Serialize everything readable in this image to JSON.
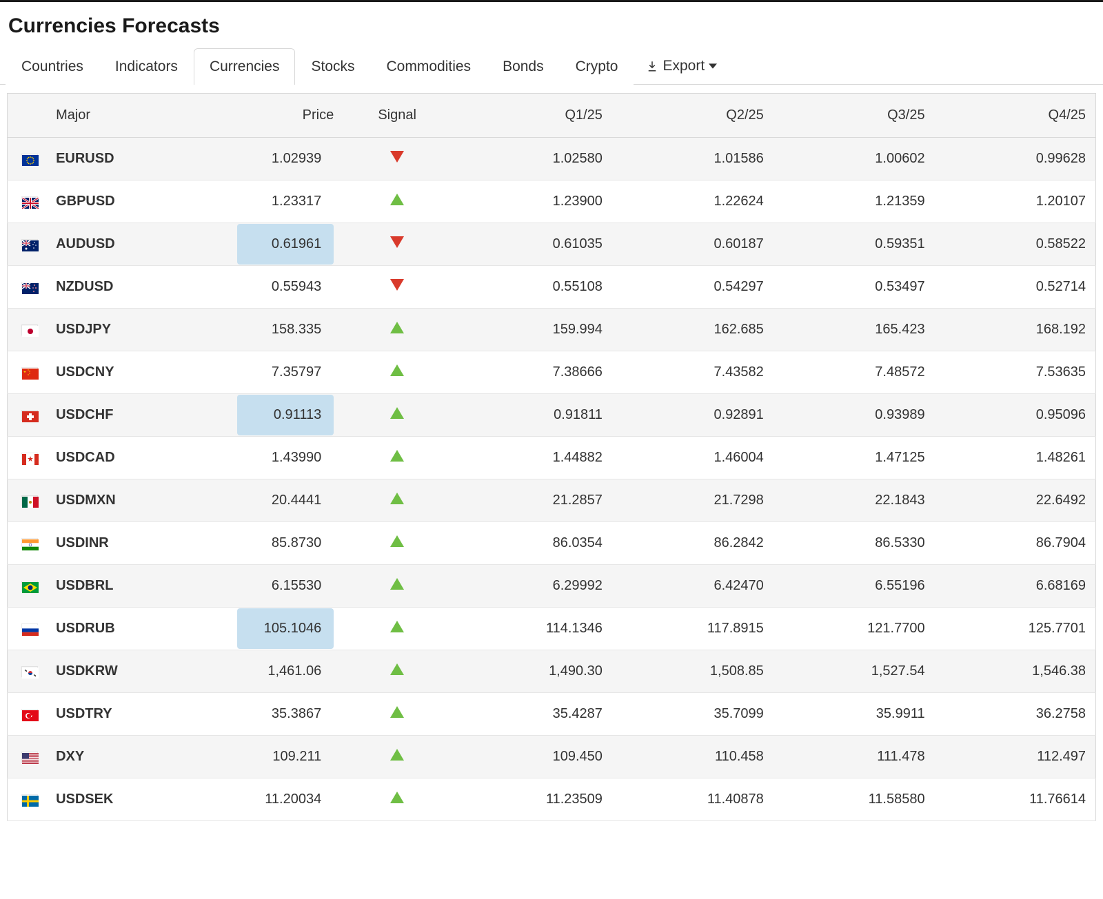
{
  "title": "Currencies Forecasts",
  "tabs": [
    {
      "label": "Countries",
      "active": false
    },
    {
      "label": "Indicators",
      "active": false
    },
    {
      "label": "Currencies",
      "active": true
    },
    {
      "label": "Stocks",
      "active": false
    },
    {
      "label": "Commodities",
      "active": false
    },
    {
      "label": "Bonds",
      "active": false
    },
    {
      "label": "Crypto",
      "active": false
    }
  ],
  "export_label": "Export",
  "columns": [
    "",
    "Major",
    "Price",
    "Signal",
    "Q1/25",
    "Q2/25",
    "Q3/25",
    "Q4/25"
  ],
  "signal_colors": {
    "up": "#6fbe44",
    "down": "#d93a2b"
  },
  "price_highlight_color": "#c6dfef",
  "row_colors": {
    "odd": "#f5f5f5",
    "even": "#ffffff",
    "border": "#d8d8d8"
  },
  "rows": [
    {
      "flag": "eu",
      "major": "EURUSD",
      "price": "1.02939",
      "price_highlight": false,
      "signal": "down",
      "q1": "1.02580",
      "q2": "1.01586",
      "q3": "1.00602",
      "q4": "0.99628"
    },
    {
      "flag": "gb",
      "major": "GBPUSD",
      "price": "1.23317",
      "price_highlight": false,
      "signal": "up",
      "q1": "1.23900",
      "q2": "1.22624",
      "q3": "1.21359",
      "q4": "1.20107"
    },
    {
      "flag": "au",
      "major": "AUDUSD",
      "price": "0.61961",
      "price_highlight": true,
      "signal": "down",
      "q1": "0.61035",
      "q2": "0.60187",
      "q3": "0.59351",
      "q4": "0.58522"
    },
    {
      "flag": "nz",
      "major": "NZDUSD",
      "price": "0.55943",
      "price_highlight": false,
      "signal": "down",
      "q1": "0.55108",
      "q2": "0.54297",
      "q3": "0.53497",
      "q4": "0.52714"
    },
    {
      "flag": "jp",
      "major": "USDJPY",
      "price": "158.335",
      "price_highlight": false,
      "signal": "up",
      "q1": "159.994",
      "q2": "162.685",
      "q3": "165.423",
      "q4": "168.192"
    },
    {
      "flag": "cn",
      "major": "USDCNY",
      "price": "7.35797",
      "price_highlight": false,
      "signal": "up",
      "q1": "7.38666",
      "q2": "7.43582",
      "q3": "7.48572",
      "q4": "7.53635"
    },
    {
      "flag": "ch",
      "major": "USDCHF",
      "price": "0.91113",
      "price_highlight": true,
      "signal": "up",
      "q1": "0.91811",
      "q2": "0.92891",
      "q3": "0.93989",
      "q4": "0.95096"
    },
    {
      "flag": "ca",
      "major": "USDCAD",
      "price": "1.43990",
      "price_highlight": false,
      "signal": "up",
      "q1": "1.44882",
      "q2": "1.46004",
      "q3": "1.47125",
      "q4": "1.48261"
    },
    {
      "flag": "mx",
      "major": "USDMXN",
      "price": "20.4441",
      "price_highlight": false,
      "signal": "up",
      "q1": "21.2857",
      "q2": "21.7298",
      "q3": "22.1843",
      "q4": "22.6492"
    },
    {
      "flag": "in",
      "major": "USDINR",
      "price": "85.8730",
      "price_highlight": false,
      "signal": "up",
      "q1": "86.0354",
      "q2": "86.2842",
      "q3": "86.5330",
      "q4": "86.7904"
    },
    {
      "flag": "br",
      "major": "USDBRL",
      "price": "6.15530",
      "price_highlight": false,
      "signal": "up",
      "q1": "6.29992",
      "q2": "6.42470",
      "q3": "6.55196",
      "q4": "6.68169"
    },
    {
      "flag": "ru",
      "major": "USDRUB",
      "price": "105.1046",
      "price_highlight": true,
      "signal": "up",
      "q1": "114.1346",
      "q2": "117.8915",
      "q3": "121.7700",
      "q4": "125.7701"
    },
    {
      "flag": "kr",
      "major": "USDKRW",
      "price": "1,461.06",
      "price_highlight": false,
      "signal": "up",
      "q1": "1,490.30",
      "q2": "1,508.85",
      "q3": "1,527.54",
      "q4": "1,546.38"
    },
    {
      "flag": "tr",
      "major": "USDTRY",
      "price": "35.3867",
      "price_highlight": false,
      "signal": "up",
      "q1": "35.4287",
      "q2": "35.7099",
      "q3": "35.9911",
      "q4": "36.2758"
    },
    {
      "flag": "us",
      "major": "DXY",
      "price": "109.211",
      "price_highlight": false,
      "signal": "up",
      "q1": "109.450",
      "q2": "110.458",
      "q3": "111.478",
      "q4": "112.497"
    },
    {
      "flag": "se",
      "major": "USDSEK",
      "price": "11.20034",
      "price_highlight": false,
      "signal": "up",
      "q1": "11.23509",
      "q2": "11.40878",
      "q3": "11.58580",
      "q4": "11.76614"
    }
  ]
}
